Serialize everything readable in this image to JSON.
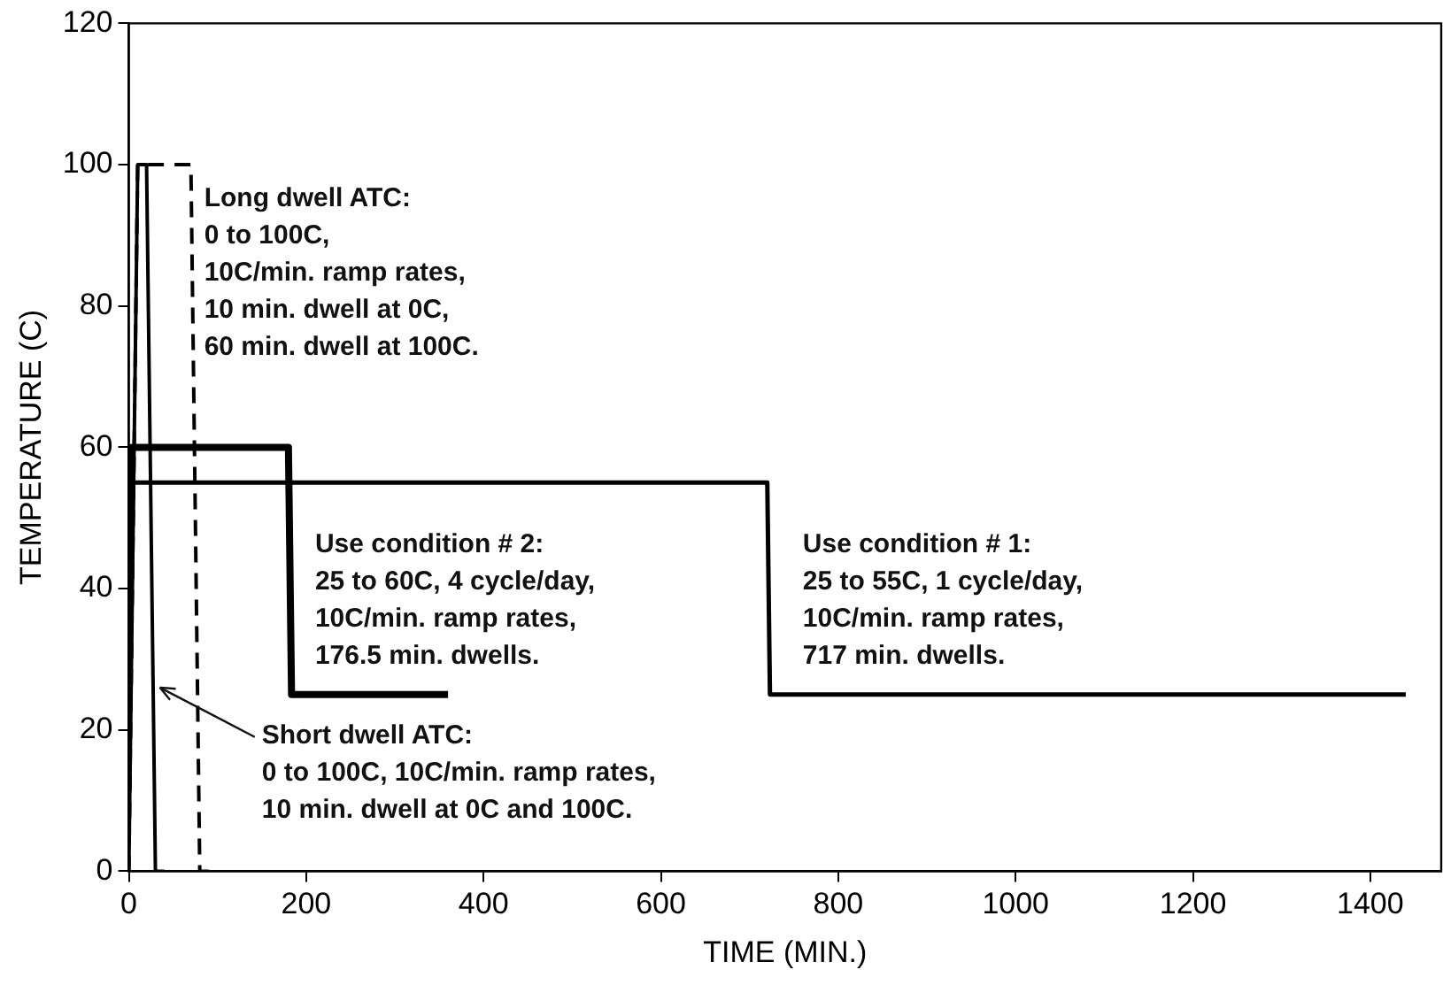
{
  "chart_data": {
    "type": "line",
    "xlabel": "TIME (MIN.)",
    "ylabel": "TEMPERATURE (C)",
    "xlim": [
      0,
      1480
    ],
    "xticks": [
      0,
      200,
      400,
      600,
      800,
      1000,
      1200,
      1400
    ],
    "ylim": [
      0,
      120
    ],
    "yticks": [
      0,
      20,
      40,
      60,
      80,
      100,
      120
    ],
    "grid": false,
    "legend": false,
    "marker": "none",
    "series": [
      {
        "color": "#000000",
        "x": [
          0,
          10,
          20,
          30,
          40
        ],
        "values": [
          0,
          100,
          100,
          0,
          0
        ]
      },
      {
        "color": "#000000",
        "line_style": "dashed",
        "x": [
          0,
          10,
          70,
          80,
          90
        ],
        "values": [
          0,
          100,
          100,
          0,
          0
        ]
      },
      {
        "color": "#000000",
        "x": [
          0,
          3.5,
          180,
          183.5,
          360
        ],
        "values": [
          25,
          60,
          60,
          25,
          25
        ]
      },
      {
        "color": "#000000",
        "x": [
          0,
          3,
          720,
          723,
          1440
        ],
        "values": [
          25,
          55,
          55,
          25,
          25
        ]
      }
    ],
    "annotations": [
      "Long dwell ATC:\n0 to 100C,\n10C/min. ramp rates,\n10 min. dwell at 0C,\n60 min. dwell at 100C.",
      "Use condition # 2:\n25 to 60C, 4 cycle/day,\n10C/min. ramp rates,\n176.5 min. dwells.",
      "Use condition # 1:\n25 to 55C, 1 cycle/day,\n10C/min. ramp rates,\n717 min. dwells.",
      {
        "text": "Short dwell ATC:\n0 to 100C, 10C/min. ramp rates,\n10 min. dwell at 0C and 100C.",
        "x": 35,
        "y": 26
      }
    ]
  }
}
